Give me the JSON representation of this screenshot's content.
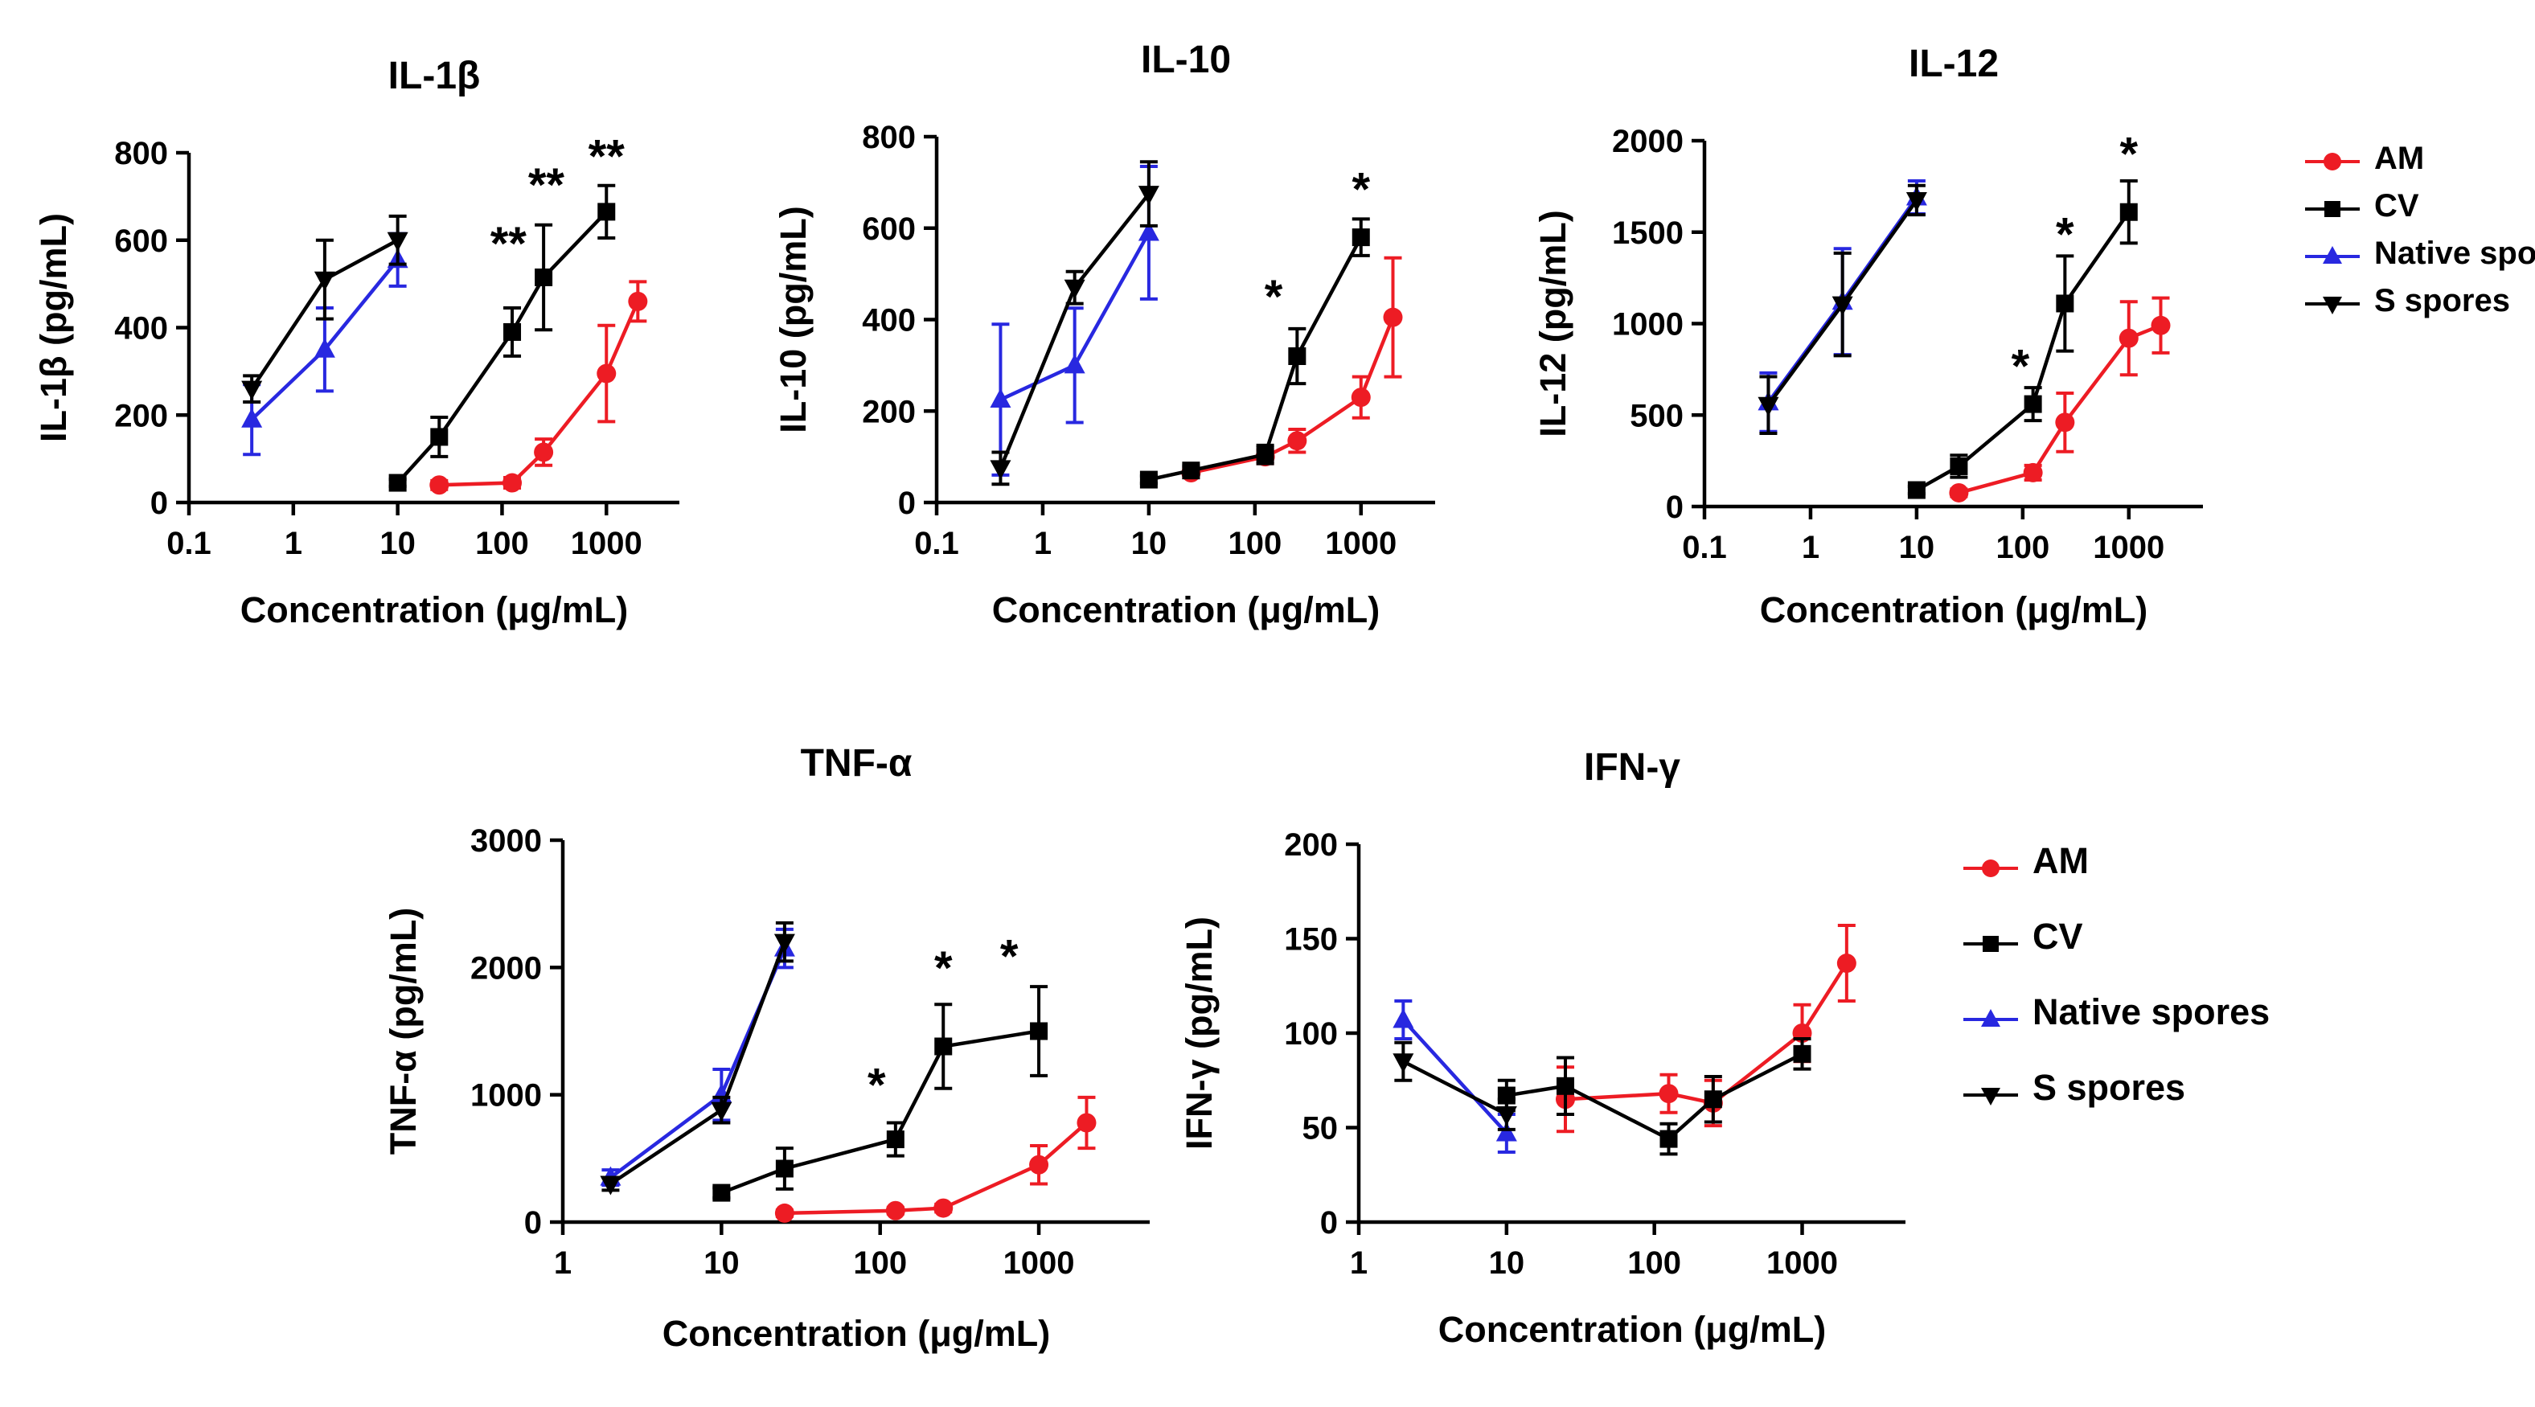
{
  "page": {
    "background": "#ffffff"
  },
  "legend": {
    "items": [
      {
        "label": "AM",
        "color": "#ed1c24",
        "marker": "circle"
      },
      {
        "label": "CV",
        "color": "#000000",
        "marker": "square"
      },
      {
        "label": "Native spores",
        "color": "#2828e0",
        "marker": "triangle-up"
      },
      {
        "label": "S spores",
        "color": "#000000",
        "marker": "triangle-down"
      }
    ]
  },
  "chart_data": [
    {
      "type": "line",
      "title": "IL-1β",
      "xlabel": "Concentration (μg/mL)",
      "ylabel": "IL-1β (pg/mL)",
      "x_scale": "log",
      "x_range": [
        0.1,
        5000
      ],
      "x_ticks": [
        0.1,
        1,
        10,
        100,
        1000
      ],
      "y_range": [
        0,
        800
      ],
      "y_ticks": [
        0,
        200,
        400,
        600,
        800
      ],
      "grid": false,
      "series": [
        {
          "name": "AM",
          "color": "#ed1c24",
          "marker": "circle",
          "x": [
            25,
            125,
            250,
            1000,
            2000
          ],
          "y": [
            40,
            45,
            115,
            295,
            460
          ],
          "err": [
            10,
            12,
            30,
            110,
            45
          ]
        },
        {
          "name": "CV",
          "color": "#000000",
          "marker": "square",
          "x": [
            10,
            25,
            125,
            250,
            1000
          ],
          "y": [
            45,
            150,
            390,
            515,
            665
          ],
          "err": [
            8,
            45,
            55,
            120,
            60
          ]
        },
        {
          "name": "Native spores",
          "color": "#2828e0",
          "marker": "triangle-up",
          "x": [
            0.4,
            2,
            10
          ],
          "y": [
            190,
            350,
            555
          ],
          "err": [
            80,
            95,
            60
          ]
        },
        {
          "name": "S spores",
          "color": "#000000",
          "marker": "triangle-down",
          "x": [
            0.4,
            2,
            10
          ],
          "y": [
            260,
            510,
            600
          ],
          "err": [
            30,
            90,
            55
          ]
        }
      ],
      "annotations": [
        {
          "x": 115,
          "y": 555,
          "text": "**"
        },
        {
          "x": 265,
          "y": 690,
          "text": "**"
        },
        {
          "x": 1000,
          "y": 755,
          "text": "**"
        }
      ]
    },
    {
      "type": "line",
      "title": "IL-10",
      "xlabel": "Concentration (μg/mL)",
      "ylabel": "IL-10 (pg/mL)",
      "x_scale": "log",
      "x_range": [
        0.1,
        5000
      ],
      "x_ticks": [
        0.1,
        1,
        10,
        100,
        1000
      ],
      "y_range": [
        0,
        800
      ],
      "y_ticks": [
        0,
        200,
        400,
        600,
        800
      ],
      "grid": false,
      "series": [
        {
          "name": "AM",
          "color": "#ed1c24",
          "marker": "circle",
          "x": [
            25,
            125,
            250,
            1000,
            2000
          ],
          "y": [
            65,
            100,
            135,
            230,
            405
          ],
          "err": [
            10,
            15,
            25,
            45,
            130
          ]
        },
        {
          "name": "CV",
          "color": "#000000",
          "marker": "square",
          "x": [
            10,
            25,
            125,
            250,
            1000
          ],
          "y": [
            50,
            70,
            105,
            320,
            580
          ],
          "err": [
            8,
            10,
            20,
            60,
            40
          ]
        },
        {
          "name": "Native spores",
          "color": "#2828e0",
          "marker": "triangle-up",
          "x": [
            0.4,
            2,
            10
          ],
          "y": [
            225,
            300,
            590
          ],
          "err": [
            165,
            125,
            145
          ]
        },
        {
          "name": "S spores",
          "color": "#000000",
          "marker": "triangle-down",
          "x": [
            0.4,
            2,
            10
          ],
          "y": [
            75,
            470,
            675
          ],
          "err": [
            35,
            35,
            70
          ]
        }
      ],
      "annotations": [
        {
          "x": 150,
          "y": 415,
          "text": "*"
        },
        {
          "x": 1000,
          "y": 650,
          "text": "*"
        }
      ]
    },
    {
      "type": "line",
      "title": "IL-12",
      "xlabel": "Concentration (μg/mL)",
      "ylabel": "IL-12 (pg/mL)",
      "x_scale": "log",
      "x_range": [
        0.1,
        5000
      ],
      "x_ticks": [
        0.1,
        1,
        10,
        100,
        1000
      ],
      "y_range": [
        0,
        2000
      ],
      "y_ticks": [
        0,
        500,
        1000,
        1500,
        2000
      ],
      "grid": false,
      "series": [
        {
          "name": "AM",
          "color": "#ed1c24",
          "marker": "circle",
          "x": [
            25,
            125,
            250,
            1000,
            2000
          ],
          "y": [
            75,
            185,
            460,
            920,
            990
          ],
          "err": [
            20,
            40,
            160,
            200,
            150
          ]
        },
        {
          "name": "CV",
          "color": "#000000",
          "marker": "square",
          "x": [
            10,
            25,
            125,
            250,
            1000
          ],
          "y": [
            90,
            220,
            560,
            1110,
            1610
          ],
          "err": [
            20,
            60,
            90,
            260,
            170
          ]
        },
        {
          "name": "Native spores",
          "color": "#2828e0",
          "marker": "triangle-up",
          "x": [
            0.4,
            2,
            10
          ],
          "y": [
            570,
            1120,
            1690
          ],
          "err": [
            160,
            290,
            90
          ]
        },
        {
          "name": "S spores",
          "color": "#000000",
          "marker": "triangle-down",
          "x": [
            0.4,
            2,
            10
          ],
          "y": [
            555,
            1105,
            1675
          ],
          "err": [
            155,
            280,
            80
          ]
        }
      ],
      "annotations": [
        {
          "x": 95,
          "y": 680,
          "text": "*"
        },
        {
          "x": 250,
          "y": 1400,
          "text": "*"
        },
        {
          "x": 1000,
          "y": 1840,
          "text": "*"
        }
      ]
    },
    {
      "type": "line",
      "title": "TNF-α",
      "xlabel": "Concentration (μg/mL)",
      "ylabel": "TNF-α  (pg/mL)",
      "x_scale": "log",
      "x_range": [
        1,
        5000
      ],
      "x_ticks": [
        1,
        10,
        100,
        1000
      ],
      "y_range": [
        0,
        3000
      ],
      "y_ticks": [
        0,
        1000,
        2000,
        3000
      ],
      "grid": false,
      "series": [
        {
          "name": "AM",
          "color": "#ed1c24",
          "marker": "circle",
          "x": [
            25,
            125,
            250,
            1000,
            2000
          ],
          "y": [
            70,
            90,
            110,
            450,
            780
          ],
          "err": [
            25,
            25,
            30,
            150,
            200
          ]
        },
        {
          "name": "CV",
          "color": "#000000",
          "marker": "square",
          "x": [
            10,
            25,
            125,
            250,
            1000
          ],
          "y": [
            230,
            420,
            650,
            1380,
            1500
          ],
          "err": [
            40,
            160,
            130,
            330,
            350
          ]
        },
        {
          "name": "Native spores",
          "color": "#2828e0",
          "marker": "triangle-up",
          "x": [
            2,
            10,
            25
          ],
          "y": [
            350,
            1000,
            2150
          ],
          "err": [
            60,
            200,
            150
          ]
        },
        {
          "name": "S spores",
          "color": "#000000",
          "marker": "triangle-down",
          "x": [
            2,
            10,
            25
          ],
          "y": [
            300,
            880,
            2200
          ],
          "err": [
            50,
            100,
            150
          ]
        }
      ],
      "annotations": [
        {
          "x": 95,
          "y": 950,
          "text": "*"
        },
        {
          "x": 250,
          "y": 1870,
          "text": "*"
        },
        {
          "x": 650,
          "y": 1960,
          "text": "*"
        }
      ]
    },
    {
      "type": "line",
      "title": "IFN-γ",
      "xlabel": "Concentration (μg/mL)",
      "ylabel": "IFN-γ (pg/mL)",
      "x_scale": "log",
      "x_range": [
        1,
        5000
      ],
      "x_ticks": [
        1,
        10,
        100,
        1000
      ],
      "y_range": [
        0,
        200
      ],
      "y_ticks": [
        0,
        50,
        100,
        150,
        200
      ],
      "grid": false,
      "series": [
        {
          "name": "AM",
          "color": "#ed1c24",
          "marker": "circle",
          "x": [
            25,
            125,
            250,
            1000,
            2000
          ],
          "y": [
            65,
            68,
            63,
            100,
            137
          ],
          "err": [
            17,
            10,
            12,
            15,
            20
          ]
        },
        {
          "name": "CV",
          "color": "#000000",
          "marker": "square",
          "x": [
            10,
            25,
            125,
            250,
            1000
          ],
          "y": [
            67,
            72,
            44,
            65,
            89
          ],
          "err": [
            8,
            15,
            8,
            12,
            8
          ]
        },
        {
          "name": "Native spores",
          "color": "#2828e0",
          "marker": "triangle-up",
          "x": [
            2,
            10
          ],
          "y": [
            107,
            47
          ],
          "err": [
            10,
            10
          ]
        },
        {
          "name": "S spores",
          "color": "#000000",
          "marker": "triangle-down",
          "x": [
            2,
            10
          ],
          "y": [
            85,
            57
          ],
          "err": [
            10,
            8
          ]
        }
      ],
      "annotations": []
    }
  ]
}
